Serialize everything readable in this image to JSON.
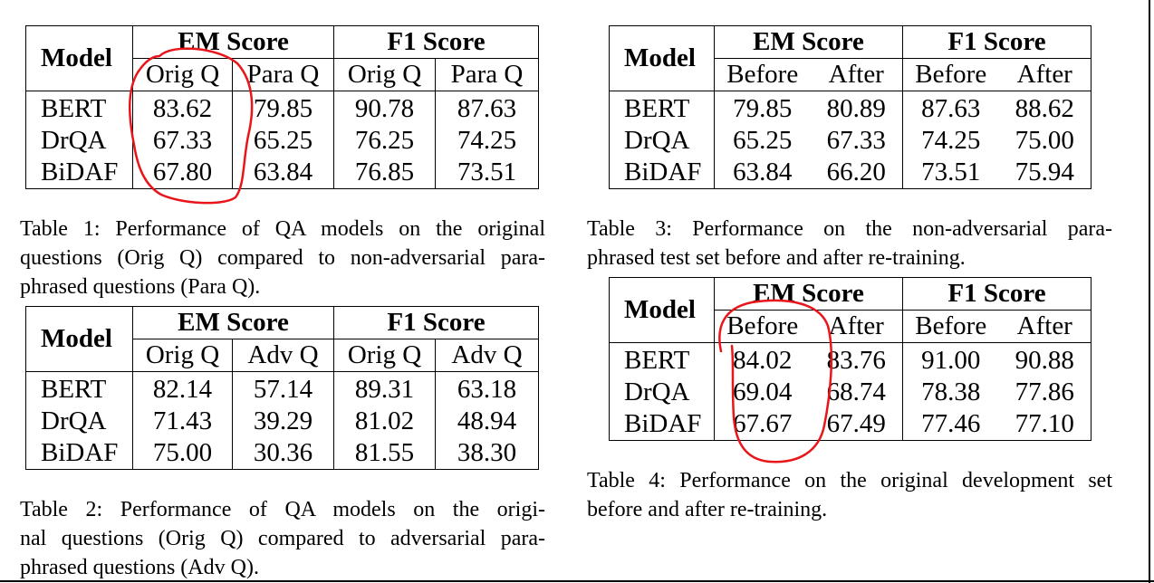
{
  "tables": [
    {
      "id": "table1",
      "header": {
        "model": "Model",
        "group1": "EM Score",
        "group2": "F1 Score",
        "sub": [
          "Orig Q",
          "Para Q",
          "Orig Q",
          "Para Q"
        ]
      },
      "rows": [
        {
          "model": "BERT",
          "values": [
            "83.62",
            "79.85",
            "90.78",
            "87.63"
          ]
        },
        {
          "model": "DrQA",
          "values": [
            "67.33",
            "65.25",
            "76.25",
            "74.25"
          ]
        },
        {
          "model": "BiDAF",
          "values": [
            "67.80",
            "63.84",
            "76.85",
            "73.51"
          ]
        }
      ],
      "caption_lines": [
        "Table 1:  Performance of QA models on the original",
        "questions (Orig Q) compared to non-adversarial para-",
        "phrased questions (Para Q)."
      ]
    },
    {
      "id": "table2",
      "header": {
        "model": "Model",
        "group1": "EM Score",
        "group2": "F1 Score",
        "sub": [
          "Orig Q",
          "Adv Q",
          "Orig Q",
          "Adv Q"
        ]
      },
      "rows": [
        {
          "model": "BERT",
          "values": [
            "82.14",
            "57.14",
            "89.31",
            "63.18"
          ]
        },
        {
          "model": "DrQA",
          "values": [
            "71.43",
            "39.29",
            "81.02",
            "48.94"
          ]
        },
        {
          "model": "BiDAF",
          "values": [
            "75.00",
            "30.36",
            "81.55",
            "38.30"
          ]
        }
      ],
      "caption_lines": [
        "Table 2:  Performance of QA models on the origi-",
        "nal questions (Orig Q) compared to adversarial para-",
        "phrased questions (Adv Q)."
      ]
    },
    {
      "id": "table3",
      "header": {
        "model": "Model",
        "group1": "EM Score",
        "group2": "F1 Score",
        "sub": [
          "Before",
          "After",
          "Before",
          "After"
        ]
      },
      "rows": [
        {
          "model": "BERT",
          "values": [
            "79.85",
            "80.89",
            "87.63",
            "88.62"
          ]
        },
        {
          "model": "DrQA",
          "values": [
            "65.25",
            "67.33",
            "74.25",
            "75.00"
          ]
        },
        {
          "model": "BiDAF",
          "values": [
            "63.84",
            "66.20",
            "73.51",
            "75.94"
          ]
        }
      ],
      "caption_lines": [
        "Table 3:  Performance on the non-adversarial para-",
        "phrased test set before and after re-training."
      ]
    },
    {
      "id": "table4",
      "header": {
        "model": "Model",
        "group1": "EM Score",
        "group2": "F1 Score",
        "sub": [
          "Before",
          "After",
          "Before",
          "After"
        ]
      },
      "rows": [
        {
          "model": "BERT",
          "values": [
            "84.02",
            "83.76",
            "91.00",
            "90.88"
          ]
        },
        {
          "model": "DrQA",
          "values": [
            "69.04",
            "68.74",
            "78.38",
            "77.86"
          ]
        },
        {
          "model": "BiDAF",
          "values": [
            "67.67",
            "67.49",
            "77.46",
            "77.10"
          ]
        }
      ],
      "caption_lines": [
        "Table 4:  Performance on the original development set",
        "before and after re-training."
      ]
    }
  ],
  "annotation_color": "#e8161b"
}
